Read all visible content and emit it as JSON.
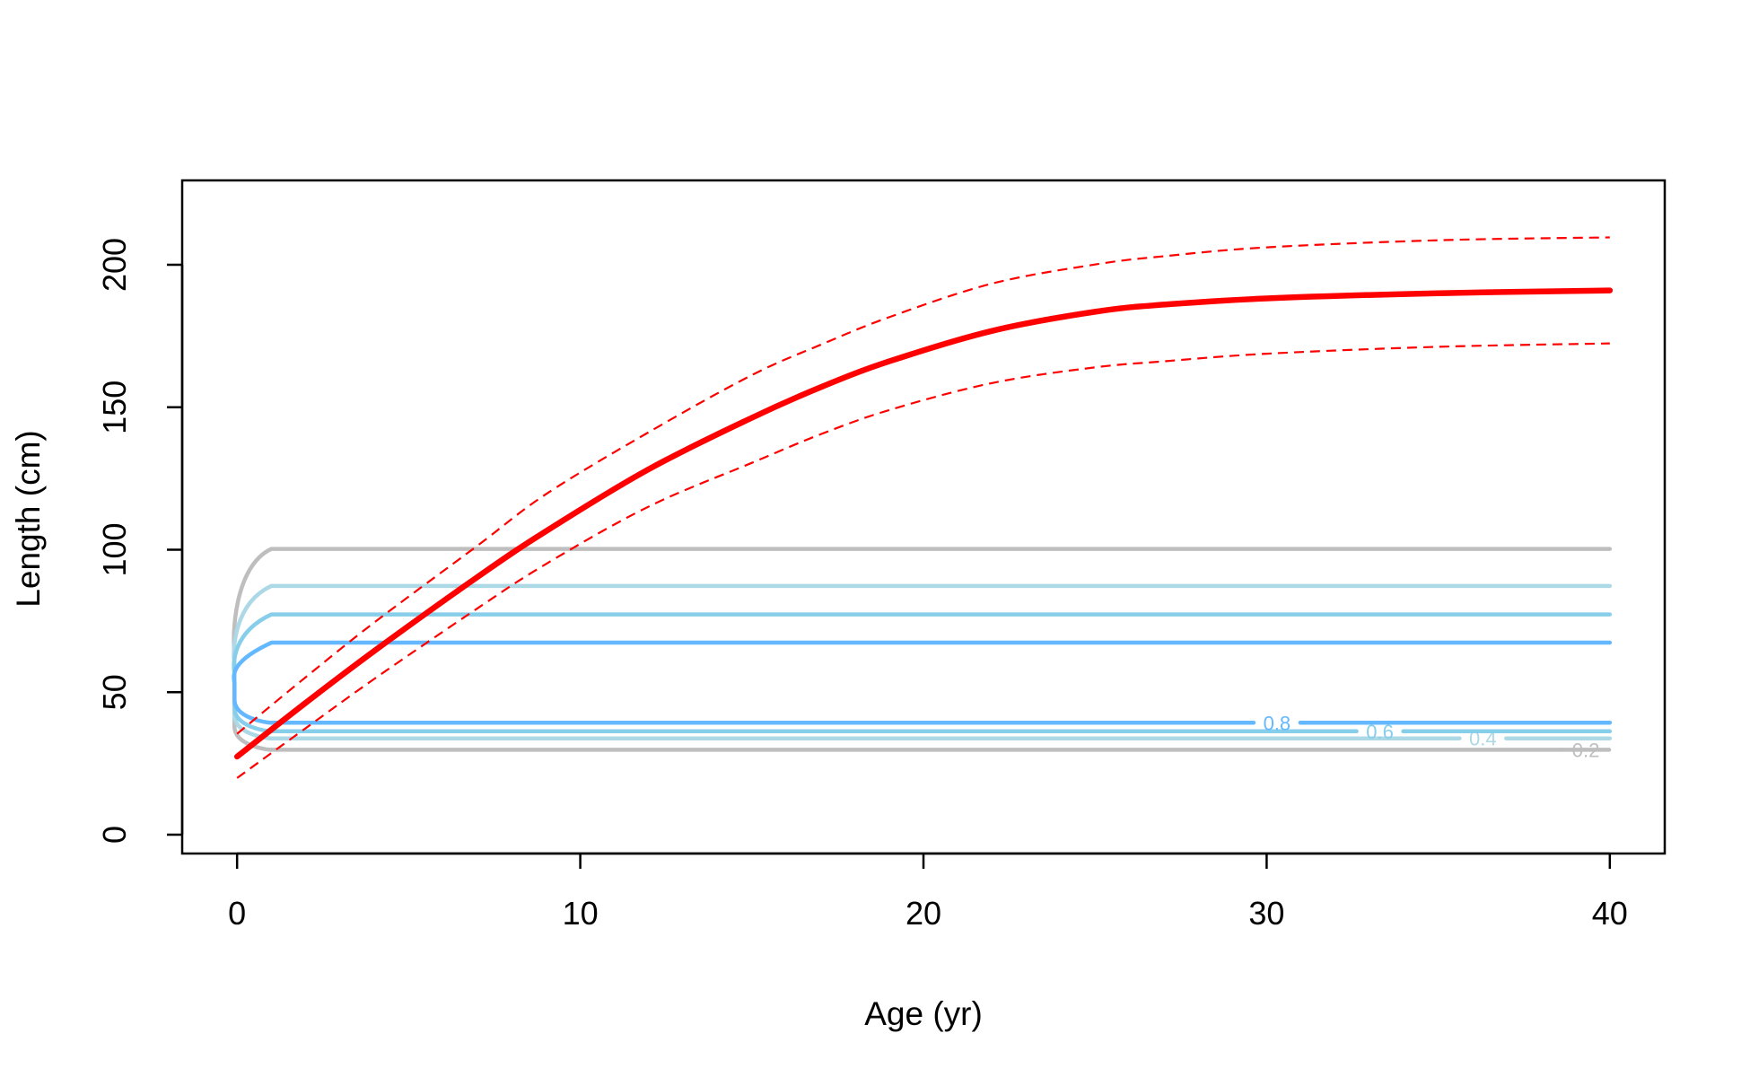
{
  "chart_data": {
    "type": "line",
    "title": "",
    "xlabel": "Age (yr)",
    "ylabel": "Length (cm)",
    "xlim": [
      -1.6,
      41.6
    ],
    "ylim": [
      -6.6,
      229.6
    ],
    "x_ticks": [
      0,
      10,
      20,
      30,
      40
    ],
    "y_ticks": [
      0,
      50,
      100,
      150,
      200
    ],
    "x_tick_labels": [
      "0",
      "10",
      "20",
      "30",
      "40"
    ],
    "y_tick_labels": [
      "0",
      "50",
      "100",
      "150",
      "200"
    ],
    "grid": false,
    "colors": {
      "growth": "#ff0000",
      "contour_0.2": "#bebebe",
      "contour_0.4": "#add8e6",
      "contour_0.6": "#87ceeb",
      "contour_0.8": "#63b8ff"
    },
    "growth_curve": {
      "x": [
        0,
        2,
        4,
        7,
        9,
        12,
        15,
        17,
        19,
        22,
        25,
        27,
        30,
        35,
        40
      ],
      "y": [
        27.4,
        46.3,
        64.5,
        90.4,
        106.5,
        128.3,
        146.3,
        157.0,
        166.1,
        176.8,
        183.5,
        186.0,
        188.2,
        190.0,
        191.0
      ]
    },
    "upper_bound": {
      "x": [
        0,
        2,
        4,
        7,
        9,
        12,
        15,
        17,
        19,
        22,
        25,
        27,
        30,
        35,
        40
      ],
      "y": [
        35.4,
        55.3,
        74.5,
        101.4,
        119.5,
        141.3,
        161.3,
        171.9,
        181.6,
        193.4,
        200.1,
        203.0,
        206.1,
        208.6,
        209.6
      ]
    },
    "lower_bound": {
      "x": [
        0,
        2,
        4,
        7,
        9,
        12,
        15,
        17,
        19,
        22,
        25,
        27,
        30,
        35,
        40
      ],
      "y": [
        19.9,
        37.4,
        54.7,
        79.4,
        95.0,
        115.2,
        130.5,
        140.5,
        149.0,
        158.5,
        164.0,
        166.1,
        168.8,
        171.2,
        172.4
      ]
    },
    "contours": [
      {
        "level": "0.2",
        "upper": 100.3,
        "lower": 29.8,
        "x_start": 1.0,
        "x_end": 40,
        "label_x": 39.3,
        "lower_x_end": 38.6
      },
      {
        "level": "0.4",
        "upper": 87.3,
        "lower": 33.8,
        "x_start": 1.0,
        "x_end": 40,
        "label_x": 36.3
      },
      {
        "level": "0.6",
        "upper": 77.3,
        "lower": 36.3,
        "x_start": 1.0,
        "x_end": 40,
        "label_x": 33.3
      },
      {
        "level": "0.8",
        "upper": 67.4,
        "lower": 39.3,
        "x_start": 1.0,
        "x_end": 40,
        "label_x": 30.3
      }
    ]
  }
}
